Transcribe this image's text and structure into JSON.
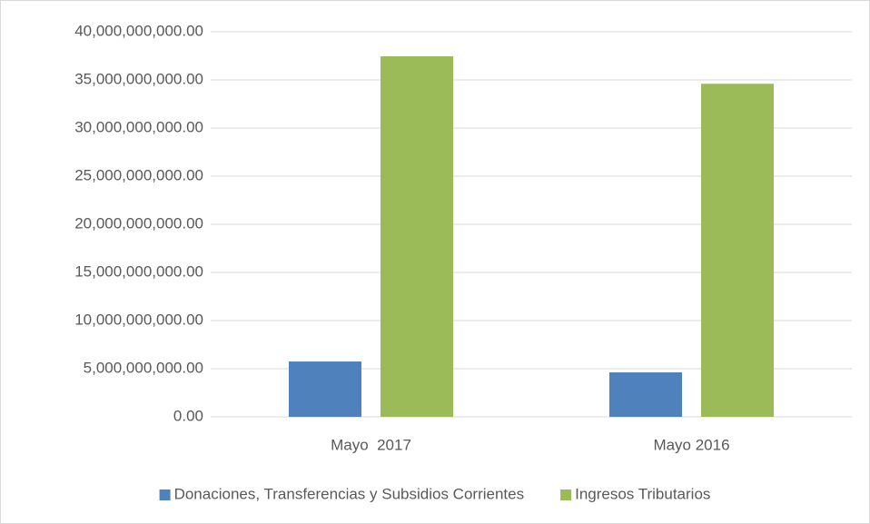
{
  "chart_data": {
    "type": "bar",
    "categories": [
      "Mayo  2017",
      "Mayo 2016"
    ],
    "series": [
      {
        "name": "Donaciones, Transferencias y Subsidios Corrientes",
        "color": "#4f81bd",
        "values": [
          5750000000,
          4620000000
        ]
      },
      {
        "name": "Ingresos Tributarios",
        "color": "#9bbb59",
        "values": [
          37450000000,
          34600000000
        ]
      }
    ],
    "ylim": [
      0,
      40000000000
    ],
    "yticks": [
      {
        "value": 0,
        "label": "0.00"
      },
      {
        "value": 5000000000,
        "label": "5,000,000,000.00"
      },
      {
        "value": 10000000000,
        "label": "10,000,000,000.00"
      },
      {
        "value": 15000000000,
        "label": "15,000,000,000.00"
      },
      {
        "value": 20000000000,
        "label": "20,000,000,000.00"
      },
      {
        "value": 25000000000,
        "label": "25,000,000,000.00"
      },
      {
        "value": 30000000000,
        "label": "30,000,000,000.00"
      },
      {
        "value": 35000000000,
        "label": "35,000,000,000.00"
      },
      {
        "value": 40000000000,
        "label": "40,000,000,000.00"
      }
    ],
    "grid": true,
    "legend": "bottom"
  }
}
